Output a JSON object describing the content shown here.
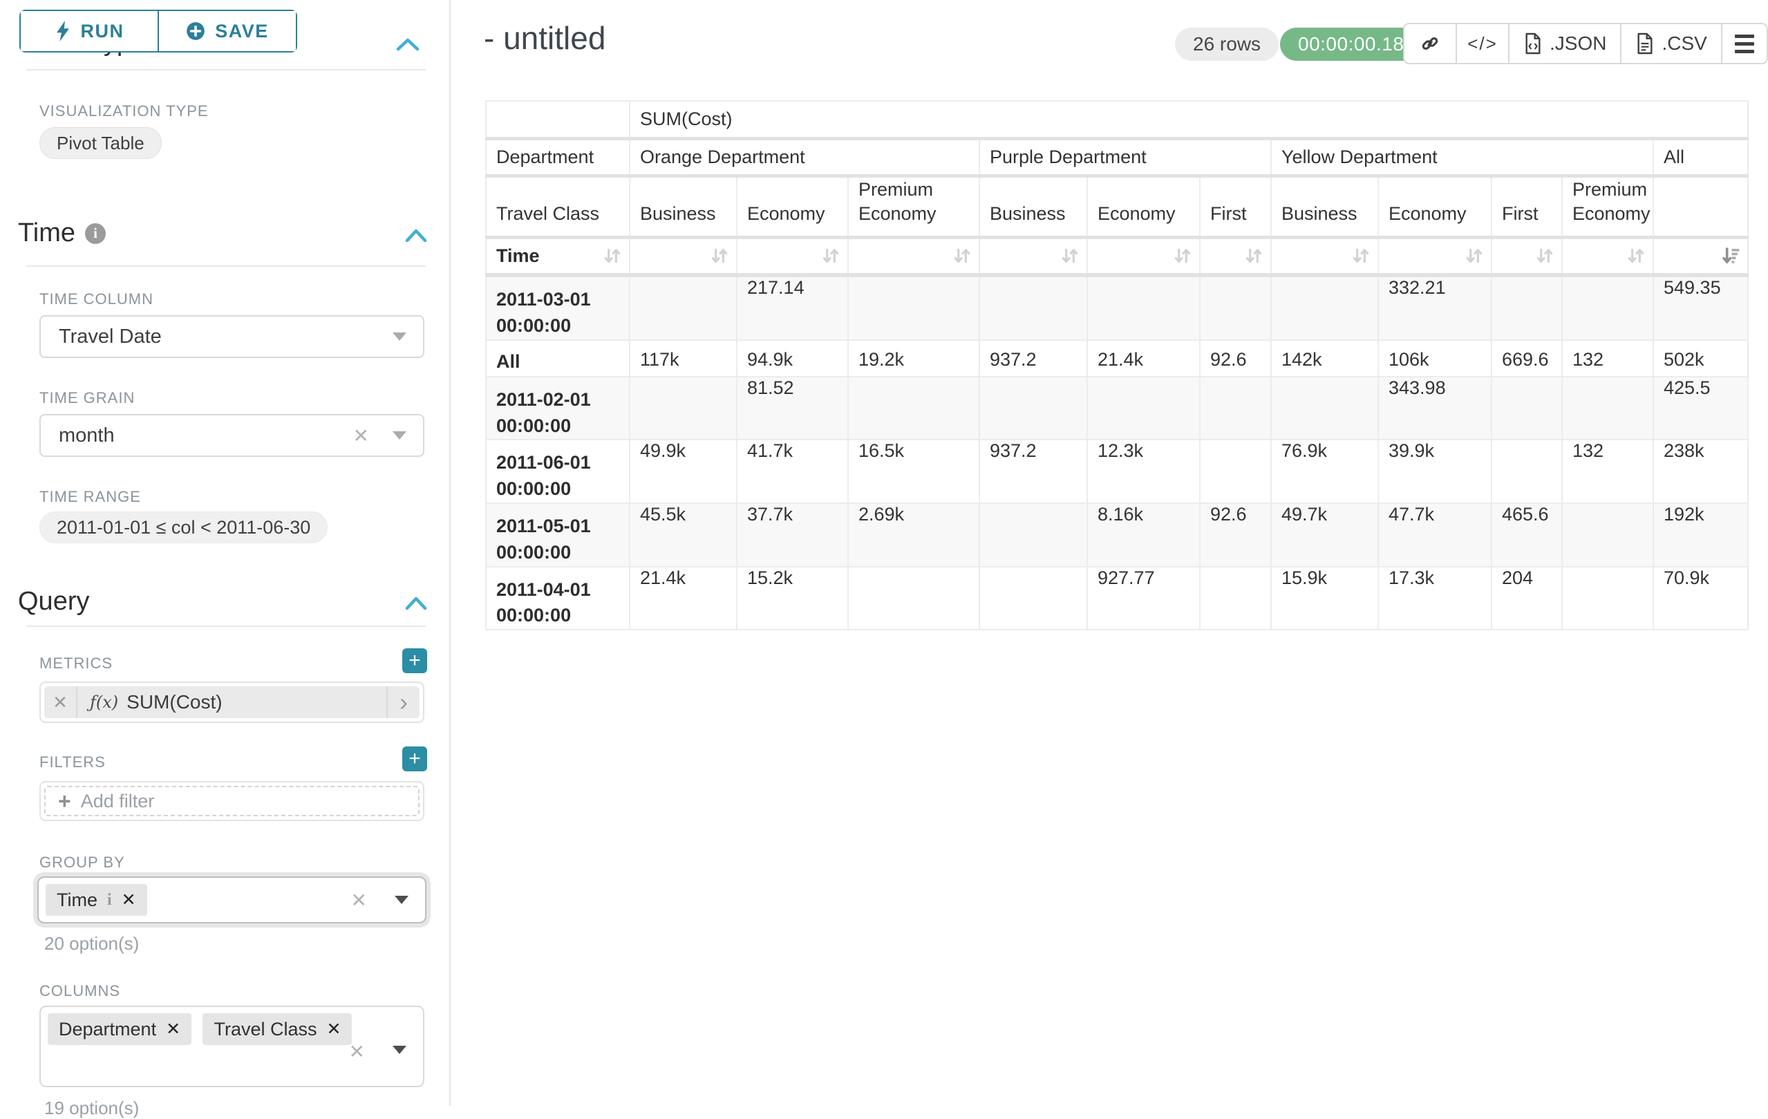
{
  "colors": {
    "accent_teal": "#2c7f9a",
    "plus_button_teal": "#2b8ea6",
    "chevron_blue": "#41aed3",
    "timer_green": "#76b987",
    "label_gray": "#8a949b",
    "table_border": "#e3e3e3",
    "stripe_gray": "#f8f8f8"
  },
  "left_panel": {
    "run_label": "RUN",
    "save_label": "SAVE",
    "chart_type_header": "Chart Type",
    "viz_label": "VISUALIZATION TYPE",
    "viz_value": "Pivot Table",
    "time": {
      "title": "Time",
      "col_label": "TIME COLUMN",
      "col_value": "Travel Date",
      "grain_label": "TIME GRAIN",
      "grain_value": "month",
      "range_label": "TIME RANGE",
      "range_value": "2011-01-01 ≤ col < 2011-06-30"
    },
    "query": {
      "title": "Query",
      "metrics_label": "METRICS",
      "metric_fx": "ƒ(x)",
      "metric_value": "SUM(Cost)",
      "filters_label": "FILTERS",
      "add_filter": "Add filter",
      "group_by_label": "GROUP BY",
      "group_by_tag": "Time",
      "group_by_options": "20 option(s)",
      "columns_label": "COLUMNS",
      "columns_tags": [
        "Department",
        "Travel Class"
      ],
      "columns_options": "19 option(s)"
    }
  },
  "header": {
    "title": "- untitled",
    "rows_badge": "26 rows",
    "timer": "00:00:00.18",
    "toolbar": {
      "code_label": "</>",
      "json_label": ".JSON",
      "csv_label": ".CSV"
    }
  },
  "chart_data": {
    "type": "table",
    "metric_header": "SUM(Cost)",
    "row_header_labels": [
      "Department",
      "Travel Class",
      "Time"
    ],
    "column_groups": [
      {
        "label": "Orange Department",
        "columns": [
          "Business",
          "Economy",
          "Premium Economy"
        ]
      },
      {
        "label": "Purple Department",
        "columns": [
          "Business",
          "Economy",
          "First"
        ]
      },
      {
        "label": "Yellow Department",
        "columns": [
          "Business",
          "Economy",
          "First",
          "Premium Economy"
        ]
      },
      {
        "label": "All",
        "columns": [
          ""
        ]
      }
    ],
    "sorted_column": "All",
    "sort_direction": "desc",
    "rows": [
      {
        "label": "2011-03-01 00:00:00",
        "values": [
          "",
          "217.14",
          "",
          "",
          "",
          "",
          "",
          "332.21",
          "",
          "",
          "549.35"
        ]
      },
      {
        "label": "All",
        "values": [
          "117k",
          "94.9k",
          "19.2k",
          "937.2",
          "21.4k",
          "92.6",
          "142k",
          "106k",
          "669.6",
          "132",
          "502k"
        ]
      },
      {
        "label": "2011-02-01 00:00:00",
        "values": [
          "",
          "81.52",
          "",
          "",
          "",
          "",
          "",
          "343.98",
          "",
          "",
          "425.5"
        ]
      },
      {
        "label": "2011-06-01 00:00:00",
        "values": [
          "49.9k",
          "41.7k",
          "16.5k",
          "937.2",
          "12.3k",
          "",
          "76.9k",
          "39.9k",
          "",
          "132",
          "238k"
        ]
      },
      {
        "label": "2011-05-01 00:00:00",
        "values": [
          "45.5k",
          "37.7k",
          "2.69k",
          "",
          "8.16k",
          "92.6",
          "49.7k",
          "47.7k",
          "465.6",
          "",
          "192k"
        ]
      },
      {
        "label": "2011-04-01 00:00:00",
        "values": [
          "21.4k",
          "15.2k",
          "",
          "",
          "927.77",
          "",
          "15.9k",
          "17.3k",
          "204",
          "",
          "70.9k"
        ]
      }
    ]
  }
}
